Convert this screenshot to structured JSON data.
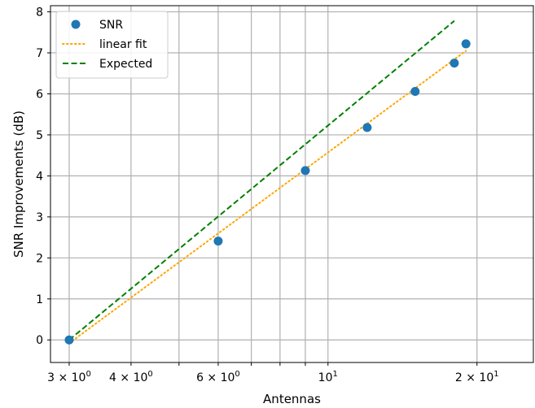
{
  "chart_data": {
    "type": "scatter",
    "xlabel": "Antennas",
    "ylabel": "SNR Improvements (dB)",
    "xscale": "log",
    "xlim": [
      2.75,
      26
    ],
    "ylim": [
      -0.55,
      8.15
    ],
    "grid": true,
    "legend_position": "top-left",
    "x_major_ticks": [
      {
        "value": 3,
        "base": "3 × 10",
        "exp": "0"
      },
      {
        "value": 4,
        "base": "4 × 10",
        "exp": "0"
      },
      {
        "value": 6,
        "base": "6 × 10",
        "exp": "0"
      },
      {
        "value": 10,
        "base": "10",
        "exp": "1"
      },
      {
        "value": 20,
        "base": "2 × 10",
        "exp": "1"
      }
    ],
    "x_grid_values": [
      3,
      4,
      5,
      6,
      7,
      8,
      9,
      10,
      20
    ],
    "y_ticks": [
      0,
      1,
      2,
      3,
      4,
      5,
      6,
      7,
      8
    ],
    "series": [
      {
        "name": "SNR",
        "kind": "scatter",
        "color": "#1f77b4",
        "x": [
          3,
          6,
          9,
          12,
          15,
          18,
          19
        ],
        "y": [
          0.0,
          2.41,
          4.13,
          5.18,
          6.06,
          6.75,
          7.22
        ]
      },
      {
        "name": "linear fit",
        "kind": "line",
        "style": "dotted",
        "color": "#ffa500",
        "x": [
          3,
          19
        ],
        "y": [
          -0.08,
          7.05
        ]
      },
      {
        "name": "Expected",
        "kind": "line",
        "style": "dashed",
        "color": "#008000",
        "x": [
          3,
          18
        ],
        "y": [
          0.0,
          7.78
        ]
      }
    ]
  }
}
